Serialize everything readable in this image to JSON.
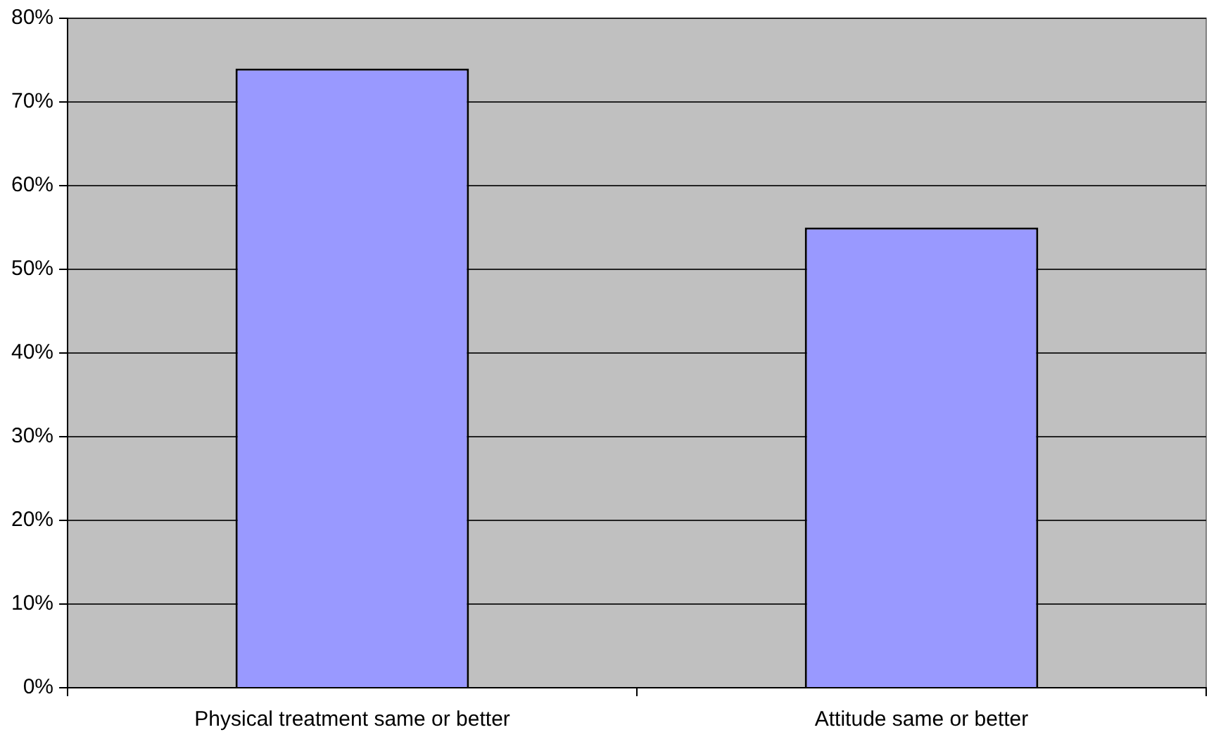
{
  "chart_data": {
    "type": "bar",
    "categories": [
      "Physical treatment same or better",
      "Attitude same or better"
    ],
    "values": [
      74,
      55
    ],
    "color": "#9999ff",
    "ylim": [
      0,
      80
    ],
    "yticks": [
      {
        "value": 0,
        "label": "0%"
      },
      {
        "value": 10,
        "label": "10%"
      },
      {
        "value": 20,
        "label": "20%"
      },
      {
        "value": 30,
        "label": "30%"
      },
      {
        "value": 40,
        "label": "40%"
      },
      {
        "value": 50,
        "label": "50%"
      },
      {
        "value": 60,
        "label": "60%"
      },
      {
        "value": 70,
        "label": "70%"
      },
      {
        "value": 80,
        "label": "80%"
      }
    ],
    "grid": "y",
    "legend": false
  }
}
